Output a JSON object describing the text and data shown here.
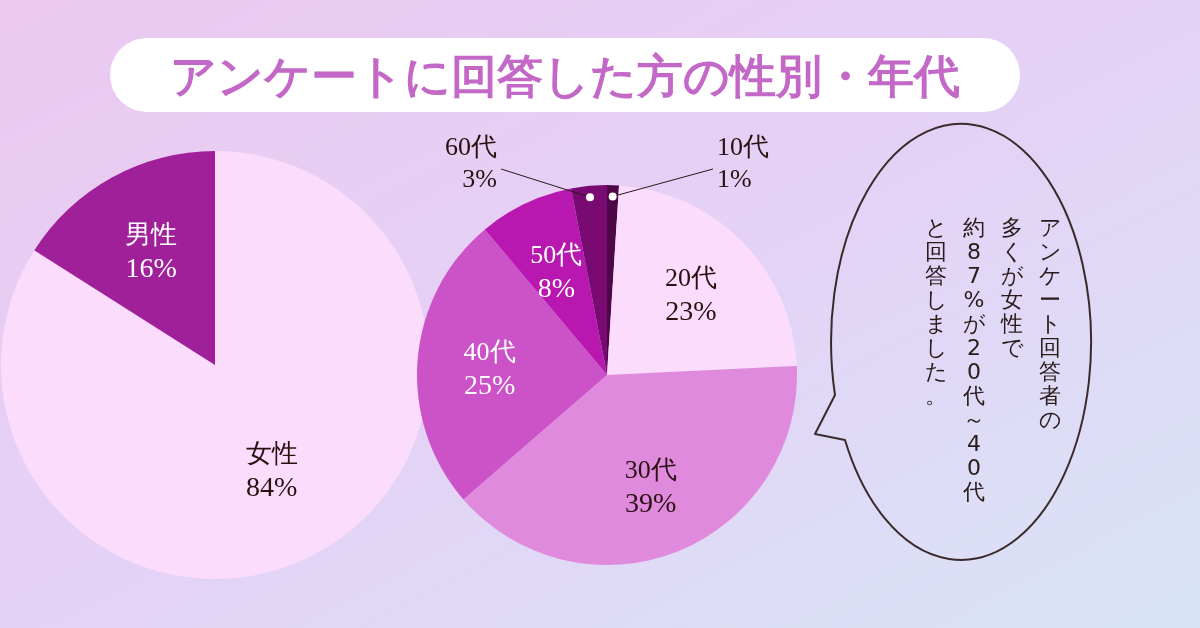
{
  "chart_data": [
    {
      "type": "pie",
      "title": "アンケートに回答した方の性別・年代",
      "categories": [
        "女性",
        "男性"
      ],
      "values": [
        84,
        16
      ],
      "value_labels": [
        "84%",
        "16%"
      ],
      "colors": [
        "#fcdcfc",
        "#a0209a"
      ]
    },
    {
      "type": "pie",
      "categories": [
        "10代",
        "20代",
        "30代",
        "40代",
        "50代",
        "60代"
      ],
      "values": [
        1,
        23,
        39,
        25,
        8,
        3
      ],
      "value_labels": [
        "1%",
        "23%",
        "39%",
        "25%",
        "8%",
        "3%"
      ],
      "colors": [
        "#4e0848",
        "#fcdcfc",
        "#e08ade",
        "#cc52c8",
        "#b818b0",
        "#780a72"
      ]
    },
    {
      "type": "other",
      "annotations": [
        "アンケート回答者の",
        "多くが女性で",
        "約87%が20代～40代",
        "と回答しました。"
      ]
    }
  ]
}
